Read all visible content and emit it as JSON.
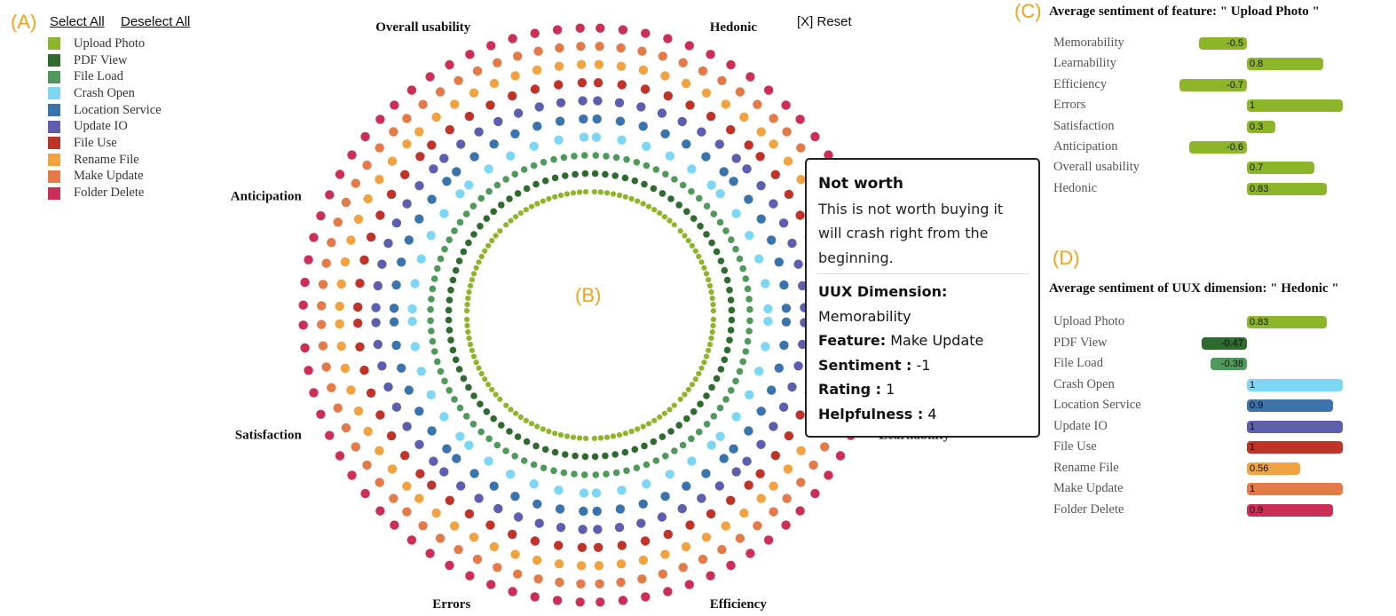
{
  "panels": {
    "a": "(A)",
    "b": "(B)",
    "c": "(C)",
    "d": "(D)"
  },
  "controls": {
    "select_all": "Select All",
    "deselect_all": "Deselect All",
    "reset": "[X] Reset"
  },
  "legend": [
    {
      "label": "Upload Photo",
      "color": "#8db52a"
    },
    {
      "label": "PDF View",
      "color": "#2f6b2f"
    },
    {
      "label": "File Load",
      "color": "#4f9a5b"
    },
    {
      "label": "Crash Open",
      "color": "#7dd6f4"
    },
    {
      "label": "Location Service",
      "color": "#3b73ad"
    },
    {
      "label": "Update IO",
      "color": "#5c5fae"
    },
    {
      "label": "File Use",
      "color": "#bf3329"
    },
    {
      "label": "Rename File",
      "color": "#f0a340"
    },
    {
      "label": "Make Update",
      "color": "#e27a4a"
    },
    {
      "label": "Folder Delete",
      "color": "#cb2f55"
    }
  ],
  "dimensions": [
    "Hedonic",
    "Memorability",
    "Learnability",
    "Efficiency",
    "Errors",
    "Satisfaction",
    "Anticipation",
    "Overall usability"
  ],
  "tooltip": {
    "title": "Not worth",
    "text": "This is not worth buying it will crash right from the beginning.",
    "dim_label": "UUX Dimension:",
    "dim_value": "Memorability",
    "feature_label": "Feature:",
    "feature_value": "Make Update",
    "sentiment_label": "Sentiment :",
    "sentiment_value": "-1",
    "rating_label": "Rating :",
    "rating_value": "1",
    "helpfulness_label": "Helpfulness :",
    "helpfulness_value": "4"
  },
  "chart_data": [
    {
      "type": "scatter",
      "title": "",
      "categories": [
        "Hedonic",
        "Memorability",
        "Learnability",
        "Efficiency",
        "Errors",
        "Satisfaction",
        "Anticipation",
        "Overall usability"
      ],
      "series": [
        {
          "name": "Upload Photo"
        },
        {
          "name": "PDF View"
        },
        {
          "name": "File Load"
        },
        {
          "name": "Crash Open"
        },
        {
          "name": "Location Service"
        },
        {
          "name": "Update IO"
        },
        {
          "name": "File Use"
        },
        {
          "name": "Rename File"
        },
        {
          "name": "Make Update"
        },
        {
          "name": "Folder Delete"
        }
      ]
    },
    {
      "type": "bar",
      "title": "Average sentiment of feature: \" Upload Photo \"",
      "categories": [
        "Memorability",
        "Learnability",
        "Efficiency",
        "Errors",
        "Satisfaction",
        "Anticipation",
        "Overall usability",
        "Hedonic"
      ],
      "values": [
        -0.5,
        0.8,
        -0.7,
        1,
        0.3,
        -0.6,
        0.7,
        0.83
      ],
      "labels": [
        "-0.5",
        "0.8",
        "-0.7",
        "1",
        "0.3",
        "-0.6",
        "0.7",
        "0.83"
      ],
      "colors": [
        "#8db52a",
        "#8db52a",
        "#8db52a",
        "#8db52a",
        "#8db52a",
        "#8db52a",
        "#8db52a",
        "#8db52a"
      ],
      "xlim": [
        -1,
        1
      ]
    },
    {
      "type": "bar",
      "title": "Average sentiment of UUX dimension: \" Hedonic \"",
      "categories": [
        "Upload Photo",
        "PDF View",
        "File Load",
        "Crash Open",
        "Location Service",
        "Update IO",
        "File Use",
        "Rename File",
        "Make Update",
        "Folder Delete"
      ],
      "values": [
        0.83,
        -0.47,
        -0.38,
        1,
        0.9,
        1,
        1,
        0.56,
        1,
        0.9
      ],
      "labels": [
        "0.83",
        "-0.47",
        "-0.38",
        "1",
        "0.9",
        "1",
        "1",
        "0.56",
        "1",
        "0.9"
      ],
      "colors": [
        "#8db52a",
        "#2f6b2f",
        "#4f9a5b",
        "#7dd6f4",
        "#3b73ad",
        "#5c5fae",
        "#bf3329",
        "#f0a340",
        "#e27a4a",
        "#cb2f55"
      ],
      "xlim": [
        -1,
        1
      ]
    }
  ]
}
